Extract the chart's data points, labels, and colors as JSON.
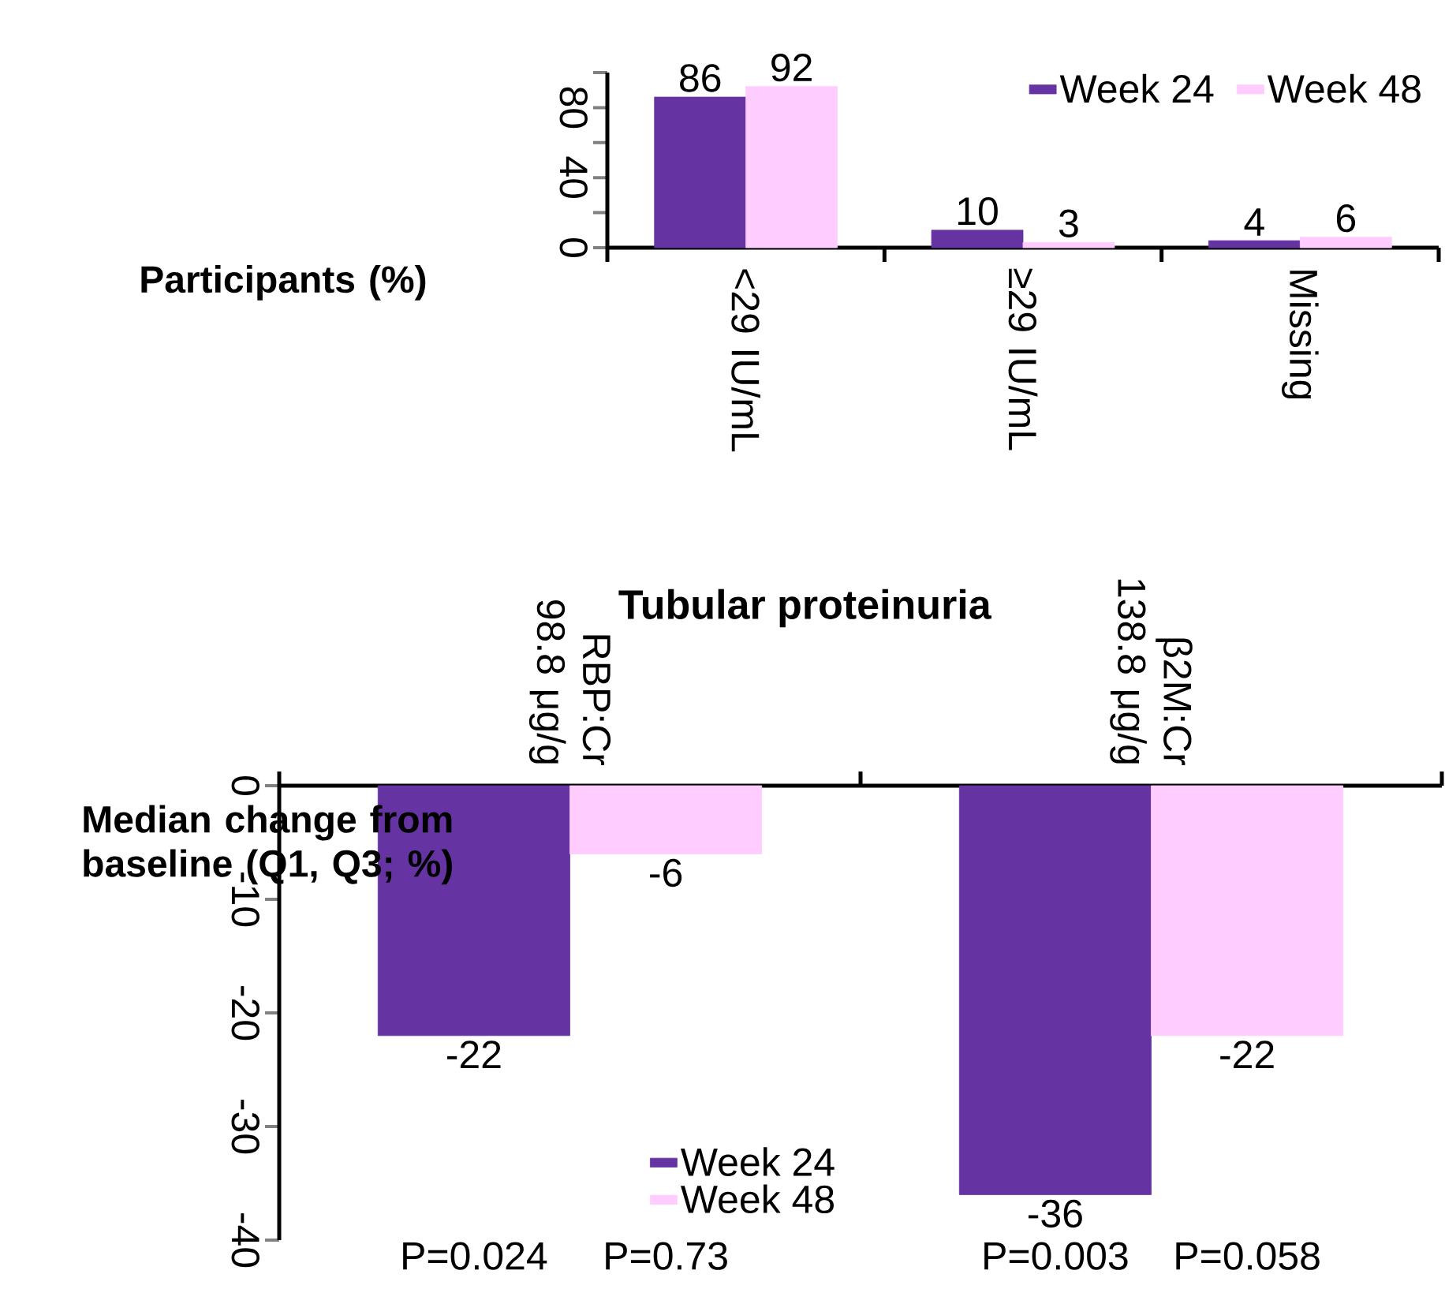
{
  "chart_data": [
    {
      "type": "bar",
      "ylabel": "Participants (%)",
      "categories": [
        "<29 IU/mL",
        "≥29 IU/mL",
        "Missing"
      ],
      "series": [
        {
          "name": "Week 24",
          "color": "#6633a3",
          "values": [
            86,
            10,
            4
          ]
        },
        {
          "name": "Week 48",
          "color": "#ffccff",
          "values": [
            92,
            3,
            6
          ]
        }
      ],
      "ylim": [
        0,
        100
      ],
      "yticks": [
        0,
        {
          "value": 20,
          "label": null
        },
        40,
        {
          "value": 60,
          "label": null
        },
        80,
        {
          "value": 100,
          "label": null
        }
      ],
      "legend": "top right",
      "data_labels": true
    },
    {
      "type": "bar",
      "title": "Tubular proteinuria",
      "ylabel": "Median change from baseline (Q1, Q3; %)",
      "categories": [
        "RBP:Cr 98.8 μg/g",
        "β2M:Cr 138.8 μg/g"
      ],
      "series": [
        {
          "name": "Week 24",
          "color": "#6633a3",
          "values": [
            -22,
            -36
          ]
        },
        {
          "name": "Week 48",
          "color": "#ffccff",
          "values": [
            -6,
            -22
          ]
        }
      ],
      "ylim": [
        -40,
        0
      ],
      "yticks": [
        -40,
        -30,
        -20,
        -10,
        0
      ],
      "legend": "bottom",
      "data_labels": true,
      "annotations": [
        "P=0.024",
        "P=0.73",
        "P=0.003",
        "P=0.058"
      ]
    }
  ]
}
